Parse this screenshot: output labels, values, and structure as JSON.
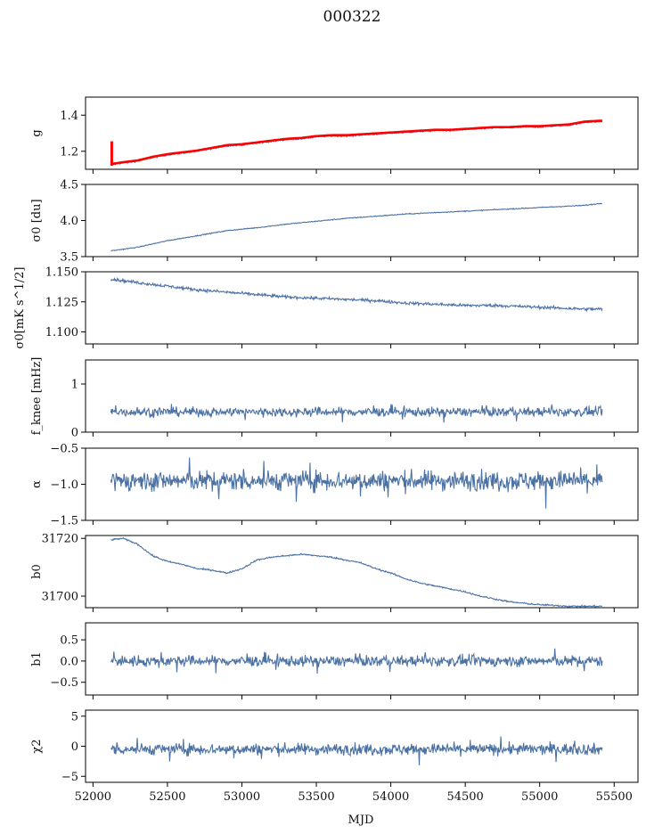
{
  "figure": {
    "title": "000322",
    "xlabel": "MJD",
    "xlim": [
      51950,
      55660
    ],
    "xticks": [
      52000,
      52500,
      53000,
      53500,
      54000,
      54500,
      55000,
      55500
    ],
    "xrange_data": [
      52120,
      55420
    ]
  },
  "colors": {
    "series": "#4c72a4",
    "highlight": "#ff0000"
  },
  "chart_data": [
    {
      "type": "line",
      "ylabel": "g",
      "ylim": [
        1.1,
        1.5
      ],
      "yticks": [
        "1.2",
        "1.4"
      ],
      "yticks_values": [
        1.2,
        1.4
      ],
      "series": [
        {
          "kind": "trend",
          "x": [
            52120,
            52200,
            52300,
            52400,
            52500,
            52600,
            52700,
            52800,
            52900,
            53000,
            53100,
            53200,
            53300,
            53400,
            53500,
            53600,
            53700,
            53800,
            53900,
            54000,
            54100,
            54200,
            54300,
            54400,
            54500,
            54600,
            54700,
            54800,
            54900,
            55000,
            55100,
            55200,
            55300,
            55400
          ],
          "values": [
            1.125,
            1.135,
            1.145,
            1.165,
            1.18,
            1.19,
            1.2,
            1.215,
            1.23,
            1.235,
            1.245,
            1.255,
            1.265,
            1.27,
            1.28,
            1.285,
            1.285,
            1.29,
            1.295,
            1.3,
            1.305,
            1.31,
            1.315,
            1.315,
            1.32,
            1.325,
            1.33,
            1.33,
            1.335,
            1.335,
            1.34,
            1.345,
            1.36,
            1.365
          ],
          "noise": 0.004
        }
      ]
    },
    {
      "type": "line",
      "ylabel": "σ0 [du]",
      "ylim": [
        3.5,
        4.5
      ],
      "yticks": [
        "3.5",
        "4.0",
        "4.5"
      ],
      "yticks_values": [
        3.5,
        4.0,
        4.5
      ],
      "series": [
        {
          "kind": "trend",
          "x": [
            52120,
            52300,
            52500,
            52700,
            52900,
            53100,
            53300,
            53500,
            53700,
            53900,
            54100,
            54300,
            54500,
            54700,
            54900,
            55100,
            55300,
            55420
          ],
          "values": [
            3.58,
            3.63,
            3.72,
            3.79,
            3.86,
            3.9,
            3.95,
            3.99,
            4.03,
            4.06,
            4.09,
            4.11,
            4.13,
            4.15,
            4.17,
            4.19,
            4.21,
            4.24
          ],
          "noise": 0.006
        }
      ]
    },
    {
      "type": "line",
      "ylabel": "σ0[mK s^1/2]",
      "ylim": [
        1.09,
        1.15
      ],
      "yticks": [
        "1.100",
        "1.125",
        "1.150"
      ],
      "yticks_values": [
        1.1,
        1.125,
        1.15
      ],
      "series": [
        {
          "kind": "trend",
          "x": [
            52120,
            52300,
            52500,
            52700,
            52900,
            53100,
            53300,
            53500,
            53700,
            53900,
            54100,
            54300,
            54500,
            54700,
            54900,
            55100,
            55300,
            55420
          ],
          "values": [
            1.144,
            1.141,
            1.138,
            1.135,
            1.133,
            1.131,
            1.129,
            1.128,
            1.127,
            1.126,
            1.124,
            1.123,
            1.122,
            1.122,
            1.121,
            1.12,
            1.119,
            1.119
          ],
          "noise": 0.0012
        }
      ]
    },
    {
      "type": "line",
      "ylabel": "f_knee [mHz]",
      "ylim": [
        0,
        1.5
      ],
      "yticks": [
        "0",
        "1"
      ],
      "yticks_values": [
        0,
        1
      ],
      "series": [
        {
          "kind": "noise",
          "mean": 0.42,
          "amp": 0.09
        }
      ]
    },
    {
      "type": "line",
      "ylabel": "α",
      "ylim": [
        -1.5,
        -0.5
      ],
      "yticks": [
        "−1.5",
        "−1.0",
        "−0.5"
      ],
      "yticks_values": [
        -1.5,
        -1.0,
        -0.5
      ],
      "series": [
        {
          "kind": "noise",
          "mean": -0.95,
          "amp": 0.13
        }
      ]
    },
    {
      "type": "line",
      "ylabel": "b0",
      "ylim": [
        31696,
        31721
      ],
      "yticks": [
        "31700",
        "31720"
      ],
      "yticks_values": [
        31700,
        31720
      ],
      "series": [
        {
          "kind": "trend",
          "x": [
            52120,
            52200,
            52300,
            52400,
            52500,
            52600,
            52700,
            52800,
            52900,
            53000,
            53100,
            53200,
            53300,
            53400,
            53500,
            53600,
            53700,
            53800,
            53900,
            54000,
            54100,
            54200,
            54300,
            54400,
            54500,
            54600,
            54700,
            54800,
            54900,
            55000,
            55100,
            55200,
            55300,
            55420
          ],
          "values": [
            31719.5,
            31720,
            31718,
            31714,
            31712,
            31711,
            31709.5,
            31709,
            31708,
            31709.5,
            31712.5,
            31713.5,
            31714,
            31714.5,
            31714,
            31713.5,
            31712.5,
            31711.5,
            31709.5,
            31708,
            31706,
            31704.5,
            31703.5,
            31702.5,
            31701.5,
            31700,
            31699,
            31698,
            31697.5,
            31697,
            31696.8,
            31696.5,
            31696.5,
            31696.5
          ],
          "noise": 0.25
        }
      ]
    },
    {
      "type": "line",
      "ylabel": "b1",
      "ylim": [
        -0.8,
        0.9
      ],
      "yticks": [
        "−0.5",
        "0.0",
        "0.5"
      ],
      "yticks_values": [
        -0.5,
        0.0,
        0.5
      ],
      "series": [
        {
          "kind": "noise",
          "mean": 0.0,
          "amp": 0.12
        }
      ]
    },
    {
      "type": "line",
      "ylabel": "χ2",
      "ylim": [
        -6,
        6
      ],
      "yticks": [
        "−5",
        "0",
        "5"
      ],
      "yticks_values": [
        -5,
        0,
        5
      ],
      "series": [
        {
          "kind": "noise",
          "mean": -0.5,
          "amp": 0.9
        }
      ]
    }
  ]
}
